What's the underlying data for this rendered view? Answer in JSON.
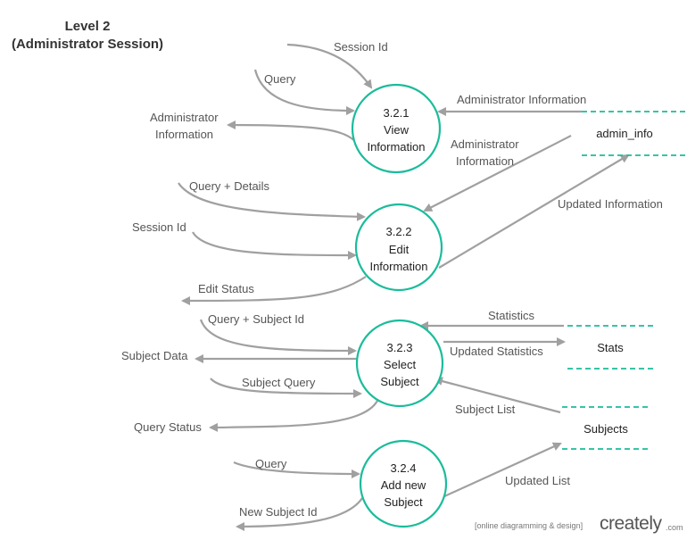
{
  "title": {
    "line1": "Level 2",
    "line2": "(Administrator Session)"
  },
  "processes": [
    {
      "id": "3.2.1",
      "lines": [
        "3.2.1",
        "View",
        "Information"
      ]
    },
    {
      "id": "3.2.2",
      "lines": [
        "3.2.2",
        "Edit",
        "Information"
      ]
    },
    {
      "id": "3.2.3",
      "lines": [
        "3.2.3",
        "Select",
        "Subject"
      ]
    },
    {
      "id": "3.2.4",
      "lines": [
        "3.2.4",
        "Add new",
        "Subject"
      ]
    }
  ],
  "data_stores": {
    "admin_info": "admin_info",
    "stats": "Stats",
    "subjects": "Subjects"
  },
  "flow_labels": {
    "session_id_1": "Session Id",
    "query_1": "Query",
    "admin_info_in": "Administrator Information",
    "admin_info_out_1": "Administrator",
    "admin_info_out_2": "Information",
    "admin_info_store_1": "Administrator",
    "admin_info_store_2": "Information",
    "query_details": "Query + Details",
    "session_id_2": "Session Id",
    "updated_information": "Updated Information",
    "edit_status": "Edit Status",
    "query_subject_id": "Query + Subject Id",
    "statistics": "Statistics",
    "updated_statistics": "Updated Statistics",
    "subject_data": "Subject Data",
    "subject_query": "Subject Query",
    "subject_list": "Subject List",
    "query_status": "Query Status",
    "query_2": "Query",
    "updated_list": "Updated List",
    "new_subject_id": "New Subject Id"
  },
  "branding": {
    "note": "[online diagramming & design]",
    "logo_text": "creately",
    "logo_suffix": ".com"
  },
  "colors": {
    "process_stroke": "#1bbc9b",
    "store_line": "#1bbc9b",
    "arrow": "#a0a0a0",
    "text": "#555555"
  }
}
